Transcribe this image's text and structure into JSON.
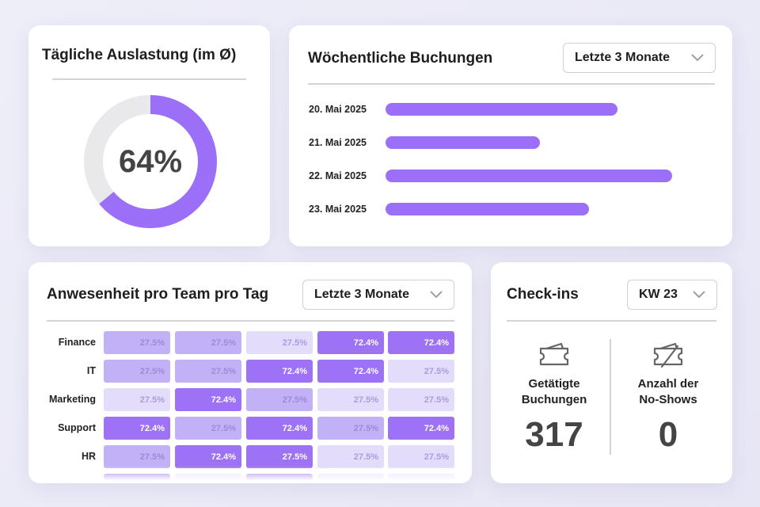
{
  "utilization": {
    "title": "Tägliche Auslastung (im Ø)",
    "value_label": "64%",
    "percent": 64,
    "colors": {
      "fill": "#9b6ff7",
      "track": "#e9e9ec"
    }
  },
  "weekly": {
    "title": "Wöchentliche Buchungen",
    "dropdown": "Letzte 3 Monate",
    "chart_data": {
      "type": "bar",
      "orientation": "horizontal",
      "categories": [
        "20. Mai 2025",
        "21. Mai 2025",
        "22. Mai 2025",
        "23. Mai 2025"
      ],
      "values": [
        81,
        54,
        100,
        71
      ],
      "color": "#9b6ff7"
    }
  },
  "attendance": {
    "title": "Anwesenheit pro Team pro Tag",
    "dropdown": "Letzte 3 Monate",
    "rows": [
      {
        "team": "Finance",
        "cells": [
          {
            "v": "27.5%",
            "l": "mid"
          },
          {
            "v": "27.5%",
            "l": "mid"
          },
          {
            "v": "27.5%",
            "l": "lo"
          },
          {
            "v": "72.4%",
            "l": "hi"
          },
          {
            "v": "72.4%",
            "l": "hi"
          }
        ]
      },
      {
        "team": "IT",
        "cells": [
          {
            "v": "27.5%",
            "l": "mid"
          },
          {
            "v": "27.5%",
            "l": "mid"
          },
          {
            "v": "72.4%",
            "l": "hi"
          },
          {
            "v": "72.4%",
            "l": "hi"
          },
          {
            "v": "27.5%",
            "l": "lo"
          }
        ]
      },
      {
        "team": "Marketing",
        "cells": [
          {
            "v": "27.5%",
            "l": "lo"
          },
          {
            "v": "72.4%",
            "l": "hi"
          },
          {
            "v": "27.5%",
            "l": "mid"
          },
          {
            "v": "27.5%",
            "l": "lo"
          },
          {
            "v": "27.5%",
            "l": "lo"
          }
        ]
      },
      {
        "team": "Support",
        "cells": [
          {
            "v": "72.4%",
            "l": "hi"
          },
          {
            "v": "27.5%",
            "l": "mid"
          },
          {
            "v": "72.4%",
            "l": "hi"
          },
          {
            "v": "27.5%",
            "l": "mid"
          },
          {
            "v": "72.4%",
            "l": "hi"
          }
        ]
      },
      {
        "team": "HR",
        "cells": [
          {
            "v": "27.5%",
            "l": "mid"
          },
          {
            "v": "72.4%",
            "l": "hi"
          },
          {
            "v": "27.5%",
            "l": "hi"
          },
          {
            "v": "27.5%",
            "l": "lo"
          },
          {
            "v": "27.5%",
            "l": "lo"
          }
        ]
      },
      {
        "team": "",
        "cells": [
          {
            "v": "",
            "l": "hi"
          },
          {
            "v": "",
            "l": "lo"
          },
          {
            "v": "",
            "l": "hi"
          },
          {
            "v": "",
            "l": "lo"
          },
          {
            "v": "",
            "l": "lo"
          }
        ]
      }
    ]
  },
  "checkins": {
    "title": "Check-ins",
    "dropdown": "KW 23",
    "bookings": {
      "label_line1": "Getätigte",
      "label_line2": "Buchungen",
      "value": "317",
      "icon": "ticket-icon"
    },
    "noshows": {
      "label_line1": "Anzahl der",
      "label_line2": "No-Shows",
      "value": "0",
      "icon": "ticket-cancelled-icon"
    }
  }
}
